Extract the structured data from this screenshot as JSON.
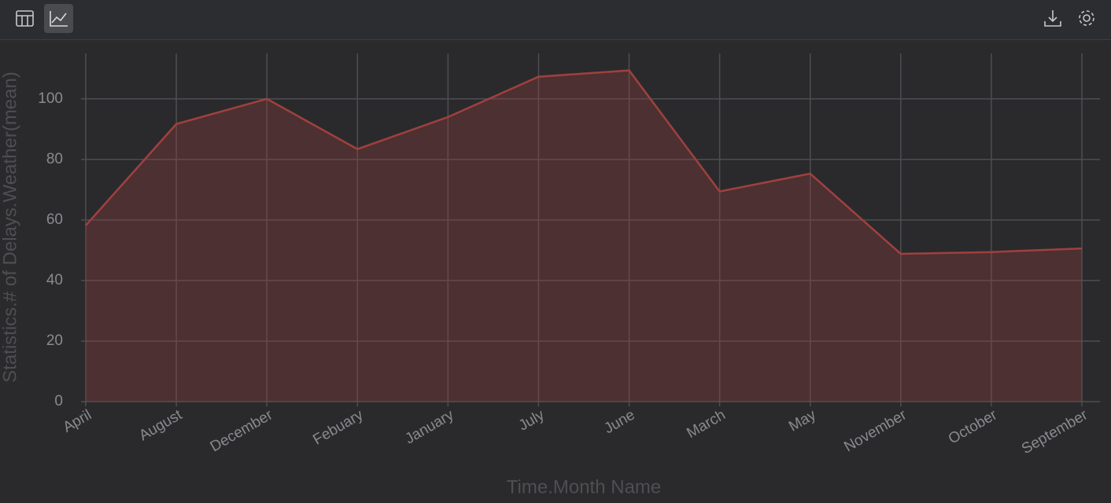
{
  "chart_data": {
    "type": "area",
    "x_label": "Time.Month Name",
    "y_label": "Statistics.# of Delays.Weather(mean)",
    "categories": [
      "April",
      "August",
      "December",
      "Febuary",
      "January",
      "July",
      "June",
      "March",
      "May",
      "November",
      "October",
      "September"
    ],
    "values": [
      58.2,
      91.7,
      100,
      83.4,
      94,
      107.3,
      109.4,
      69.4,
      75.3,
      48.8,
      49.4,
      50.6
    ],
    "color": "#a0403f",
    "ylim": [
      0,
      115
    ],
    "yticks": [
      0,
      20,
      40,
      60,
      80,
      100
    ],
    "grid": true
  }
}
